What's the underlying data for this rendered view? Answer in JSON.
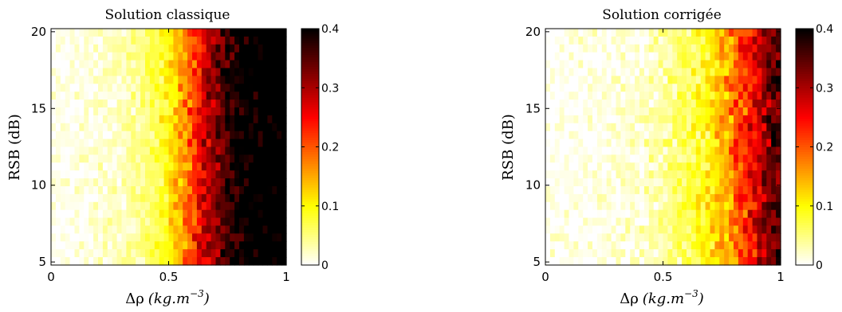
{
  "chart_data": [
    {
      "type": "heatmap",
      "title": "Solution classique",
      "xlabel_main": "Δρ",
      "xlabel_unit": "(kg.m",
      "xlabel_exp": "−3",
      "xlabel_close": ")",
      "ylabel": "RSB (dB)",
      "xlim": [
        0,
        1
      ],
      "ylim": [
        4.8,
        20.2
      ],
      "xticks": [
        0,
        0.5,
        1
      ],
      "xtick_labels": [
        "0",
        "0.5",
        "1"
      ],
      "yticks": [
        5,
        10,
        15,
        20
      ],
      "ytick_labels": [
        "5",
        "10",
        "15",
        "20"
      ],
      "colorbar": {
        "range": [
          0,
          0.4
        ],
        "ticks": [
          0,
          0.1,
          0.2,
          0.3,
          0.4
        ],
        "tick_labels": [
          "0",
          "0.1",
          "0.2",
          "0.3",
          "0.4"
        ],
        "colormap": "hot-reversed"
      },
      "grid": {
        "nx": 50,
        "ny": 30
      },
      "profile": {
        "rho": [
          0,
          0.1,
          0.2,
          0.3,
          0.4,
          0.45,
          0.5,
          0.55,
          0.6,
          0.65,
          0.7,
          0.75,
          0.8,
          0.85,
          1.0
        ],
        "value": [
          0.003,
          0.008,
          0.015,
          0.028,
          0.05,
          0.07,
          0.1,
          0.15,
          0.21,
          0.27,
          0.32,
          0.37,
          0.4,
          0.42,
          0.45
        ]
      },
      "noise_amplitude": 0.07
    },
    {
      "type": "heatmap",
      "title": "Solution corrigée",
      "xlabel_main": "Δρ",
      "xlabel_unit": "(kg.m",
      "xlabel_exp": "−3",
      "xlabel_close": ")",
      "ylabel": "RSB (dB)",
      "xlim": [
        0,
        1
      ],
      "ylim": [
        4.8,
        20.2
      ],
      "xticks": [
        0,
        0.5,
        1
      ],
      "xtick_labels": [
        "0",
        "0.5",
        "1"
      ],
      "yticks": [
        5,
        10,
        15,
        20
      ],
      "ytick_labels": [
        "5",
        "10",
        "15",
        "20"
      ],
      "colorbar": {
        "range": [
          0,
          0.4
        ],
        "ticks": [
          0,
          0.1,
          0.2,
          0.3,
          0.4
        ],
        "tick_labels": [
          "0",
          "0.1",
          "0.2",
          "0.3",
          "0.4"
        ],
        "colormap": "hot-reversed"
      },
      "grid": {
        "nx": 50,
        "ny": 30
      },
      "profile": {
        "rho": [
          0,
          0.2,
          0.4,
          0.5,
          0.6,
          0.7,
          0.75,
          0.8,
          0.85,
          0.9,
          0.95,
          1.0
        ],
        "value": [
          0.002,
          0.006,
          0.018,
          0.035,
          0.06,
          0.1,
          0.14,
          0.18,
          0.22,
          0.27,
          0.32,
          0.36
        ]
      },
      "noise_amplitude": 0.08
    }
  ]
}
